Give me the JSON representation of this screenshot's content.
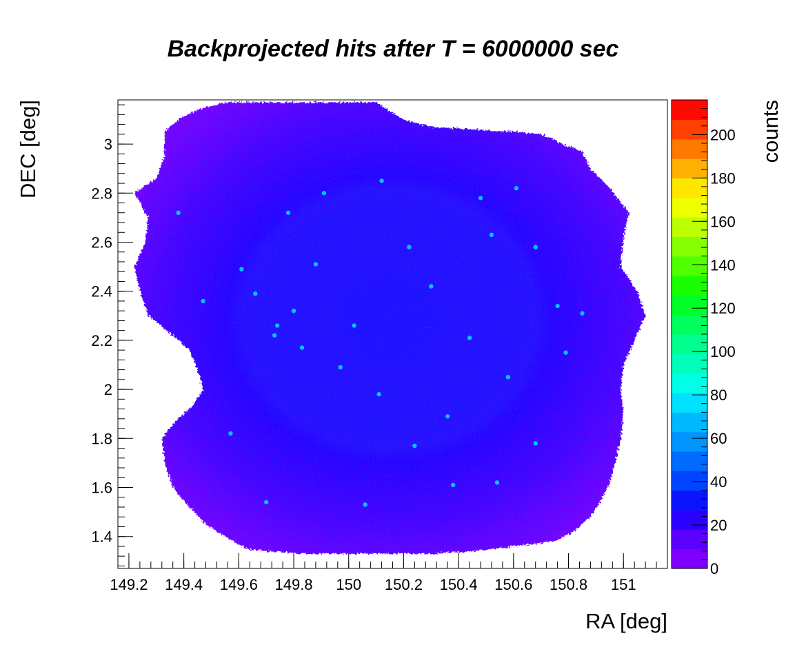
{
  "chart_data": {
    "type": "heatmap",
    "title": "Backprojected hits after T = 6000000 sec",
    "xlabel": "RA [deg]",
    "ylabel": "DEC [deg]",
    "zlabel": "counts",
    "xlim": [
      149.16,
      151.16
    ],
    "ylim": [
      1.27,
      3.18
    ],
    "zlim": [
      0,
      216
    ],
    "x_ticks": [
      "149.2",
      "149.4",
      "149.6",
      "149.8",
      "150",
      "150.2",
      "150.4",
      "150.6",
      "150.8",
      "151"
    ],
    "y_ticks": [
      "1.4",
      "1.6",
      "1.8",
      "2",
      "2.2",
      "2.4",
      "2.6",
      "2.8",
      "3"
    ],
    "z_ticks": [
      "0",
      "20",
      "40",
      "60",
      "80",
      "100",
      "120",
      "140",
      "160",
      "180",
      "200"
    ],
    "colorbar_colors": [
      "#7f00ff",
      "#5a00ff",
      "#2a00ff",
      "#0a14ff",
      "#0044ff",
      "#006cff",
      "#0094ff",
      "#00b8ff",
      "#00e0ff",
      "#00ffe6",
      "#00ffba",
      "#00ff8e",
      "#00ff5c",
      "#00ff28",
      "#1aff00",
      "#50ff00",
      "#86ff00",
      "#bcff00",
      "#eeff00",
      "#ffe600",
      "#ffb000",
      "#ff7800",
      "#ff4000",
      "#ff0a00"
    ],
    "coverage_outline": [
      [
        149.33,
        3.05
      ],
      [
        149.38,
        3.1
      ],
      [
        149.45,
        3.14
      ],
      [
        149.55,
        3.17
      ],
      [
        149.7,
        3.17
      ],
      [
        149.85,
        3.17
      ],
      [
        150.0,
        3.17
      ],
      [
        150.1,
        3.17
      ],
      [
        150.2,
        3.1
      ],
      [
        150.3,
        3.07
      ],
      [
        150.45,
        3.06
      ],
      [
        150.6,
        3.05
      ],
      [
        150.7,
        3.04
      ],
      [
        150.78,
        3.0
      ],
      [
        150.85,
        2.97
      ],
      [
        150.88,
        2.9
      ],
      [
        150.95,
        2.82
      ],
      [
        151.02,
        2.72
      ],
      [
        151.0,
        2.62
      ],
      [
        150.99,
        2.5
      ],
      [
        151.05,
        2.4
      ],
      [
        151.08,
        2.3
      ],
      [
        151.04,
        2.2
      ],
      [
        151.0,
        2.1
      ],
      [
        150.99,
        2.0
      ],
      [
        151.0,
        1.9
      ],
      [
        150.99,
        1.8
      ],
      [
        150.97,
        1.7
      ],
      [
        150.95,
        1.62
      ],
      [
        150.92,
        1.55
      ],
      [
        150.88,
        1.48
      ],
      [
        150.82,
        1.42
      ],
      [
        150.75,
        1.38
      ],
      [
        150.6,
        1.36
      ],
      [
        150.45,
        1.34
      ],
      [
        150.3,
        1.33
      ],
      [
        150.15,
        1.33
      ],
      [
        150.0,
        1.33
      ],
      [
        149.85,
        1.33
      ],
      [
        149.7,
        1.34
      ],
      [
        149.63,
        1.35
      ],
      [
        149.55,
        1.4
      ],
      [
        149.48,
        1.45
      ],
      [
        149.42,
        1.52
      ],
      [
        149.36,
        1.6
      ],
      [
        149.33,
        1.7
      ],
      [
        149.32,
        1.8
      ],
      [
        149.37,
        1.87
      ],
      [
        149.43,
        1.93
      ],
      [
        149.47,
        2.0
      ],
      [
        149.45,
        2.08
      ],
      [
        149.42,
        2.16
      ],
      [
        149.35,
        2.23
      ],
      [
        149.27,
        2.3
      ],
      [
        149.24,
        2.4
      ],
      [
        149.22,
        2.5
      ],
      [
        149.26,
        2.6
      ],
      [
        149.27,
        2.7
      ],
      [
        149.22,
        2.8
      ],
      [
        149.3,
        2.86
      ],
      [
        149.33,
        2.95
      ]
    ],
    "sources": [
      [
        149.78,
        2.72
      ],
      [
        150.12,
        2.85
      ],
      [
        149.38,
        2.72
      ],
      [
        150.52,
        2.63
      ],
      [
        150.68,
        2.58
      ],
      [
        149.88,
        2.51
      ],
      [
        149.47,
        2.36
      ],
      [
        149.8,
        2.32
      ],
      [
        149.73,
        2.22
      ],
      [
        149.74,
        2.26
      ],
      [
        149.83,
        2.17
      ],
      [
        150.85,
        2.31
      ],
      [
        150.79,
        2.15
      ],
      [
        150.11,
        1.98
      ],
      [
        149.57,
        1.82
      ],
      [
        150.24,
        1.77
      ],
      [
        150.38,
        1.61
      ],
      [
        149.7,
        1.54
      ],
      [
        150.06,
        1.53
      ],
      [
        150.61,
        2.82
      ],
      [
        150.48,
        2.78
      ],
      [
        149.66,
        2.39
      ],
      [
        150.3,
        2.42
      ],
      [
        150.76,
        2.34
      ],
      [
        149.91,
        2.8
      ],
      [
        150.54,
        1.62
      ],
      [
        150.68,
        1.78
      ],
      [
        149.61,
        2.49
      ],
      [
        150.44,
        2.21
      ],
      [
        150.02,
        2.26
      ],
      [
        150.58,
        2.05
      ],
      [
        150.22,
        2.58
      ],
      [
        149.97,
        2.09
      ],
      [
        150.36,
        1.89
      ]
    ]
  }
}
